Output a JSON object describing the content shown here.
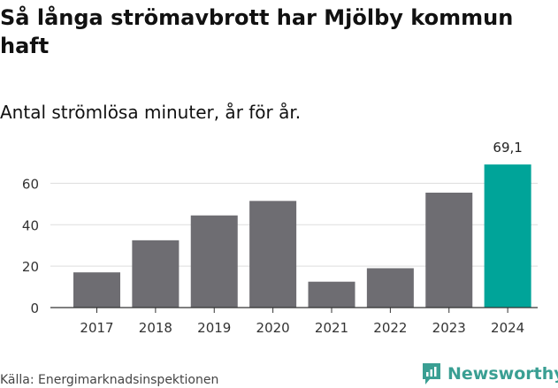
{
  "title_line1": "Så långa strömavbrott har Mjölby kommun",
  "title_line2": "haft",
  "subtitle": "Antal strömlösa minuter, år för år.",
  "source": "Källa: Energimarknadsinspektionen",
  "brand": "Newsworthy",
  "colors": {
    "bar": "#6e6d72",
    "highlight": "#00a499",
    "grid": "#dddddd",
    "axis": "#333333",
    "brand": "#3a9f93"
  },
  "icons": {
    "brand_logo": "newsworthy-chart-bubble-icon"
  },
  "chart_data": {
    "type": "bar",
    "categories": [
      "2017",
      "2018",
      "2019",
      "2020",
      "2021",
      "2022",
      "2023",
      "2024"
    ],
    "values": [
      17,
      32.5,
      44.5,
      51.5,
      12.5,
      19,
      55.5,
      69.1
    ],
    "highlight_index": 7,
    "data_labels": {
      "2024": "69,1"
    },
    "yticks": [
      0,
      20,
      40,
      60
    ],
    "ylim": [
      0,
      70
    ],
    "grid": true,
    "title": "Så långa strömavbrott har Mjölby kommun haft",
    "subtitle": "Antal strömlösa minuter, år för år.",
    "xlabel": "",
    "ylabel": ""
  }
}
